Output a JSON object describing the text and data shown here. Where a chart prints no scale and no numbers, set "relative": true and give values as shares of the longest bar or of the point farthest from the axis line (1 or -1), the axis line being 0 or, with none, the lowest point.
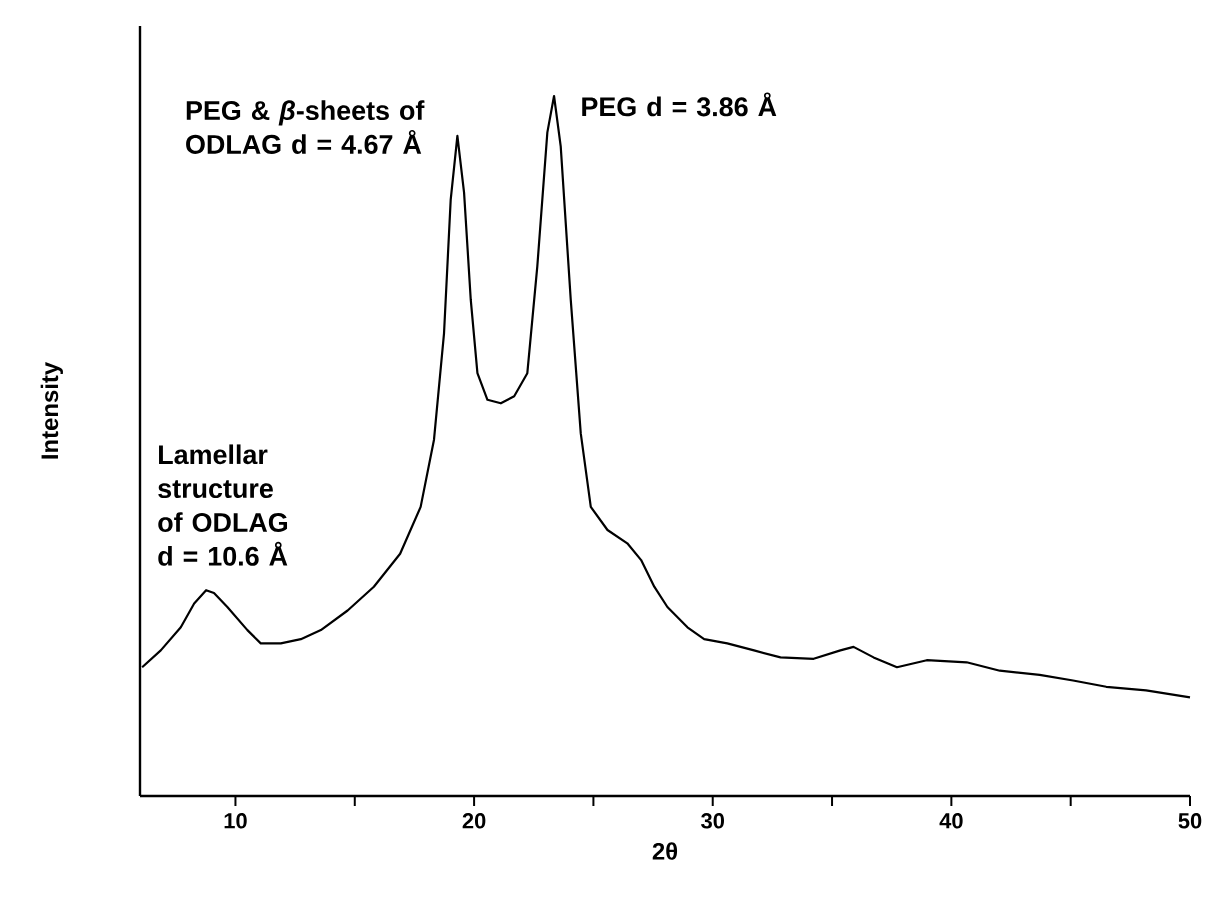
{
  "chart_data": {
    "type": "line",
    "relative": true,
    "xlabel": "2θ",
    "ylabel": "Intensity",
    "xlim": [
      6,
      50
    ],
    "xticks": [
      10,
      {
        "value": 15,
        "label": null
      },
      20,
      {
        "value": 25,
        "label": null
      },
      30,
      {
        "value": 35,
        "label": null
      },
      40,
      {
        "value": 45,
        "label": null
      },
      50
    ],
    "x": [
      6.09,
      6.87,
      7.71,
      8.27,
      8.77,
      9.1,
      9.66,
      10.5,
      11.06,
      11.9,
      12.74,
      13.58,
      14.7,
      15.8,
      16.9,
      17.76,
      18.32,
      18.74,
      19.02,
      19.3,
      19.58,
      19.86,
      20.14,
      20.56,
      21.12,
      21.68,
      22.23,
      22.65,
      23.07,
      23.35,
      23.63,
      24.05,
      24.47,
      24.89,
      25.59,
      26.42,
      27.0,
      27.55,
      28.1,
      28.94,
      29.64,
      30.61,
      31.73,
      32.84,
      34.23,
      35.35,
      35.9,
      36.74,
      37.72,
      38.97,
      40.64,
      42.03,
      43.7,
      45.1,
      46.49,
      48.16,
      50
    ],
    "values": [
      0.184,
      0.208,
      0.241,
      0.275,
      0.294,
      0.29,
      0.27,
      0.237,
      0.218,
      0.218,
      0.224,
      0.237,
      0.265,
      0.299,
      0.346,
      0.413,
      0.509,
      0.661,
      0.852,
      0.943,
      0.862,
      0.709,
      0.604,
      0.566,
      0.561,
      0.571,
      0.604,
      0.757,
      0.948,
      1.0,
      0.928,
      0.709,
      0.518,
      0.413,
      0.38,
      0.361,
      0.337,
      0.299,
      0.27,
      0.241,
      0.224,
      0.218,
      0.208,
      0.198,
      0.196,
      0.208,
      0.213,
      0.198,
      0.184,
      0.194,
      0.191,
      0.179,
      0.173,
      0.165,
      0.156,
      0.151,
      0.141
    ],
    "color": "#000000",
    "line_style": "solid",
    "marker": "none",
    "annotations": [
      {
        "text": "Lamellar structure of ODLAG d = 10.6 Å",
        "x": 8.8,
        "y": 0.294
      },
      {
        "text": "PEG & *β*-sheets of ODLAG d = 4.67 Å",
        "x": 19.3,
        "y": 0.943
      },
      {
        "text": "PEG d = 3.86 Å",
        "x": 23.35,
        "y": 1.0
      }
    ]
  }
}
